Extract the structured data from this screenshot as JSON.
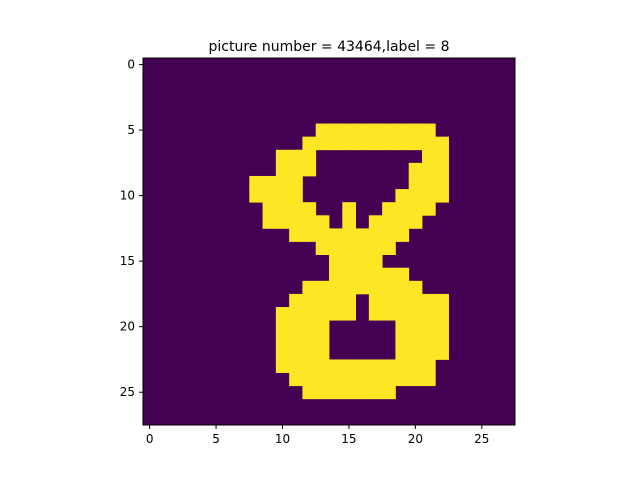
{
  "chart_data": {
    "type": "heatmap",
    "title": "picture number = 43464,label = 8",
    "xlabel": "",
    "ylabel": "",
    "grid_size": [
      28,
      28
    ],
    "xlim": [
      -0.5,
      27.5
    ],
    "ylim": [
      27.5,
      -0.5
    ],
    "x_ticks": [
      0,
      5,
      10,
      15,
      20,
      25
    ],
    "y_ticks": [
      0,
      5,
      10,
      15,
      20,
      25
    ],
    "legend": "none",
    "grid": false,
    "colors": {
      "background_cell": "#440154",
      "foreground_cell": "#fde725"
    },
    "pixels": [
      "0000000000000000000000000000",
      "0000000000000000000000000000",
      "0000000000000000000000000000",
      "0000000000000000000000000000",
      "0000000000000000000000000000",
      "0000000000000111111111000000",
      "0000000000001111111111100000",
      "0000000000111000000001100000",
      "0000000000111000000011100000",
      "0000000011110000000011100000",
      "0000000011110000000111100000",
      "0000000001111001001111000000",
      "0000000001111101011110000000",
      "0000000000011111111100000000",
      "0000000000000111111000000000",
      "0000000000000011110000000000",
      "0000000000000011111100000000",
      "0000000000001111111110000000",
      "0000000000011111011111100000",
      "0000000000111111011111100000",
      "0000000000111100000111100000",
      "0000000000111100000111100000",
      "0000000000111100000111100000",
      "0000000000111111111111000000",
      "0000000000011111111111000000",
      "0000000000001111111000000000",
      "0000000000000000000000000000",
      "0000000000000000000000000000"
    ]
  }
}
